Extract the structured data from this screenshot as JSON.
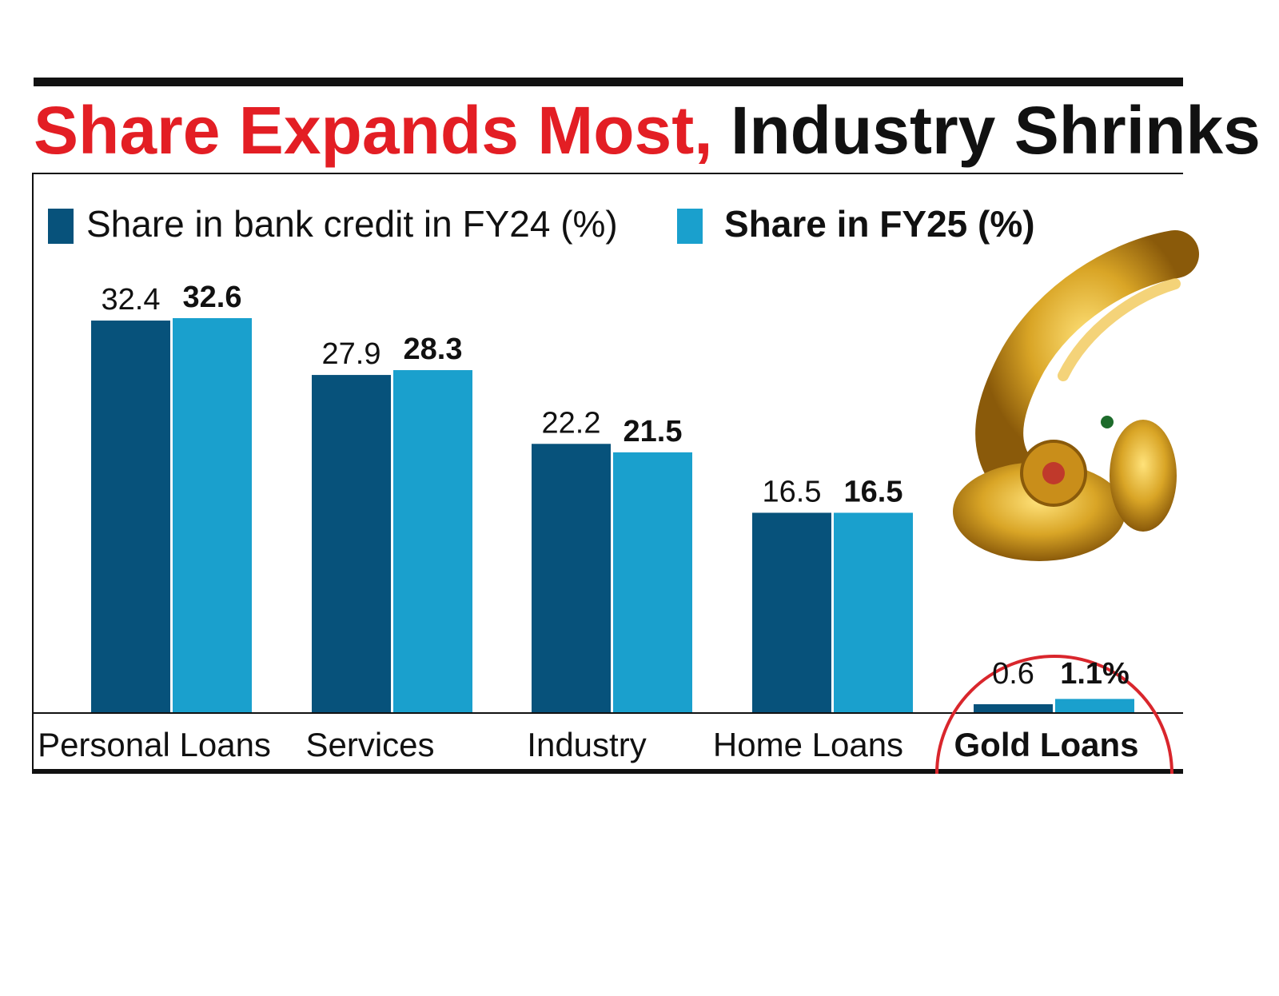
{
  "title": {
    "part1": "Share Expands Most,",
    "part2": "Industry Shrinks"
  },
  "colors": {
    "fy24": "#07527b",
    "fy25": "#1aa0cd",
    "title_accent": "#e31e24",
    "highlight_circle": "#d9262c",
    "gold": "#d9a526"
  },
  "chart_data": {
    "type": "bar",
    "categories": [
      "Personal Loans",
      "Services",
      "Industry",
      "Home Loans",
      "Gold Loans"
    ],
    "series": [
      {
        "name": "Share in bank credit in FY24 (%)",
        "values": [
          32.4,
          27.9,
          22.2,
          16.5,
          0.6
        ]
      },
      {
        "name": "Share in FY25 (%)",
        "values": [
          32.6,
          28.3,
          21.5,
          16.5,
          1.1
        ]
      }
    ],
    "data_labels": [
      [
        "32.4",
        "27.9",
        "22.2",
        "16.5",
        "0.6"
      ],
      [
        "32.6",
        "28.3",
        "21.5",
        "16.5",
        "1.1%"
      ]
    ],
    "highlight_category": "Gold Loans",
    "ylim": [
      0,
      35
    ],
    "grid": false,
    "legend_position": "top-left",
    "xlabel": "",
    "ylabel": ""
  }
}
